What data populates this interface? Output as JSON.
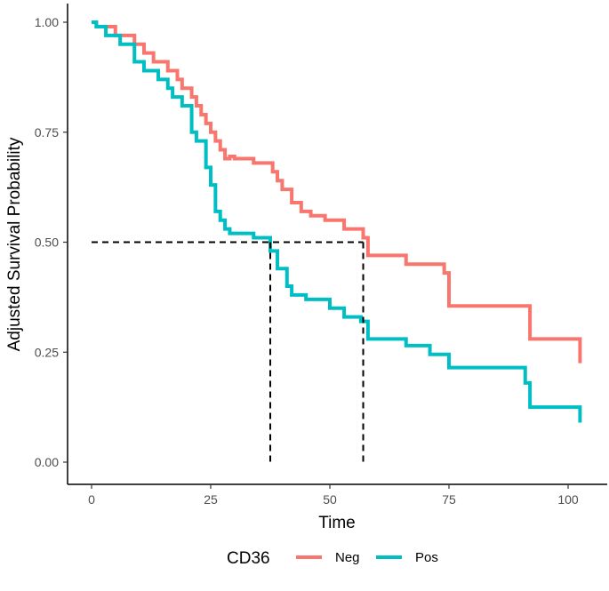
{
  "chart_data": {
    "type": "line",
    "step": true,
    "title": "",
    "xlabel": "Time",
    "ylabel": "Adjusted Survival Probability",
    "xlim": [
      0,
      103
    ],
    "ylim": [
      0,
      1
    ],
    "x_ticks": [
      0,
      25,
      50,
      75,
      100
    ],
    "x_tick_labels": [
      "0",
      "25",
      "50",
      "75",
      "100"
    ],
    "y_ticks": [
      0,
      0.25,
      0.5,
      0.75,
      1
    ],
    "y_tick_labels": [
      "0.00",
      "0.25",
      "0.50",
      "0.75",
      "1.00"
    ],
    "grid": false,
    "legend": {
      "title": "CD36",
      "position": "bottom"
    },
    "median_reference": {
      "y": 0.5,
      "x_values": [
        37.5,
        57
      ],
      "style": "dashed",
      "color": "#000000"
    },
    "series": [
      {
        "name": "Neg",
        "color": "#F8766D",
        "x": [
          0,
          1,
          5,
          9,
          11,
          13,
          16,
          18,
          19,
          21,
          22,
          23,
          24,
          25,
          26,
          27,
          28,
          29,
          30,
          34,
          38,
          39,
          40,
          42,
          44,
          46,
          49,
          53,
          57,
          58,
          66,
          74,
          75,
          91,
          92,
          102.5
        ],
        "y": [
          1.0,
          0.99,
          0.97,
          0.95,
          0.93,
          0.91,
          0.89,
          0.87,
          0.85,
          0.83,
          0.81,
          0.79,
          0.77,
          0.75,
          0.73,
          0.71,
          0.69,
          0.695,
          0.69,
          0.68,
          0.66,
          0.64,
          0.62,
          0.59,
          0.57,
          0.56,
          0.55,
          0.53,
          0.51,
          0.47,
          0.45,
          0.43,
          0.355,
          0.355,
          0.28,
          0.225
        ]
      },
      {
        "name": "Pos",
        "color": "#00BFC4",
        "x": [
          0,
          1,
          3,
          6,
          9,
          11,
          14,
          16,
          17,
          19,
          21,
          22,
          24,
          25,
          26,
          27,
          28,
          29,
          34,
          37.5,
          39,
          41,
          42,
          45,
          50,
          53,
          56.5,
          58,
          66,
          71,
          75,
          91,
          92,
          102.5
        ],
        "y": [
          1.0,
          0.99,
          0.97,
          0.95,
          0.91,
          0.89,
          0.87,
          0.85,
          0.83,
          0.81,
          0.75,
          0.73,
          0.67,
          0.63,
          0.57,
          0.55,
          0.53,
          0.52,
          0.51,
          0.48,
          0.44,
          0.4,
          0.38,
          0.37,
          0.35,
          0.33,
          0.32,
          0.28,
          0.265,
          0.245,
          0.215,
          0.18,
          0.125,
          0.09
        ]
      }
    ]
  }
}
